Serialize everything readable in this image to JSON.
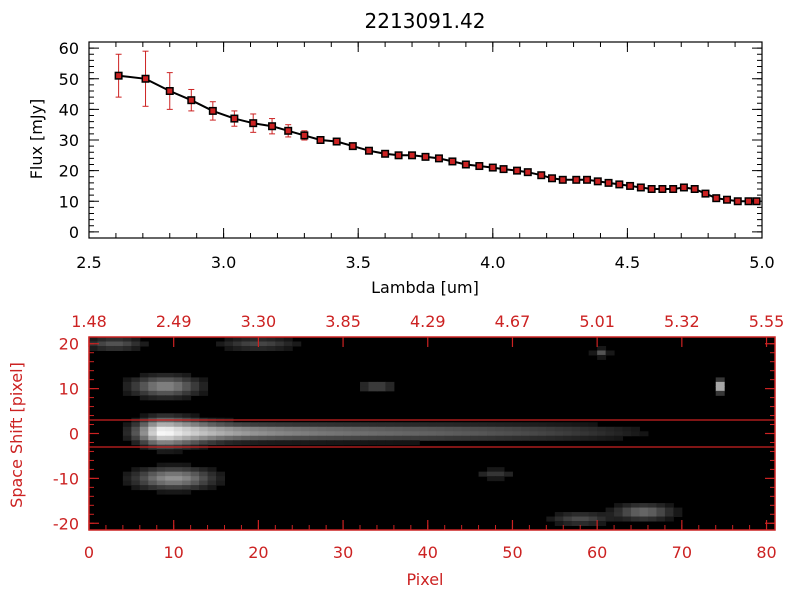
{
  "chart_data": [
    {
      "type": "line",
      "title": "2213091.42",
      "xlabel": "Lambda [um]",
      "ylabel": "Flux [mJy]",
      "xlim": [
        2.5,
        5.0
      ],
      "ylim": [
        -2,
        62
      ],
      "xticks": [
        {
          "v": 2.5,
          "label": "2.5"
        },
        {
          "v": 3.0,
          "label": "3.0"
        },
        {
          "v": 3.5,
          "label": "3.5"
        },
        {
          "v": 4.0,
          "label": "4.0"
        },
        {
          "v": 4.5,
          "label": "4.5"
        },
        {
          "v": 5.0,
          "label": "5.0"
        }
      ],
      "yticks": [
        {
          "v": 0,
          "label": "0"
        },
        {
          "v": 10,
          "label": "10"
        },
        {
          "v": 20,
          "label": "20"
        },
        {
          "v": 30,
          "label": "30"
        },
        {
          "v": 40,
          "label": "40"
        },
        {
          "v": 50,
          "label": "50"
        },
        {
          "v": 60,
          "label": "60"
        }
      ],
      "line_color": "#000000",
      "marker_color": "#cc2222",
      "errorbar_color": "#cc2222",
      "series": [
        {
          "x": [
            2.61,
            2.71,
            2.8,
            2.88,
            2.96,
            3.04,
            3.11,
            3.18,
            3.24,
            3.3,
            3.36,
            3.42,
            3.48,
            3.54,
            3.6,
            3.65,
            3.7,
            3.75,
            3.8,
            3.85,
            3.9,
            3.95,
            4.0,
            4.04,
            4.09,
            4.13,
            4.18,
            4.22,
            4.26,
            4.31,
            4.35,
            4.39,
            4.43,
            4.47,
            4.51,
            4.55,
            4.59,
            4.63,
            4.67,
            4.71,
            4.75,
            4.79,
            4.83,
            4.87,
            4.91,
            4.95,
            4.98
          ],
          "y": [
            51,
            50,
            46,
            43,
            39.5,
            37,
            35.5,
            34.5,
            33,
            31.5,
            30,
            29.5,
            28,
            26.5,
            25.5,
            25,
            25,
            24.5,
            24,
            23,
            22,
            21.5,
            21,
            20.5,
            20,
            19.5,
            18.5,
            17.5,
            17,
            17,
            17,
            16.5,
            16,
            15.5,
            15,
            14.5,
            14,
            14,
            14,
            14.5,
            14,
            12.5,
            11,
            10.5,
            10,
            10,
            10
          ],
          "err": [
            7,
            9,
            6,
            3.5,
            3,
            2.5,
            3,
            2.5,
            2,
            1.5,
            1,
            1,
            1,
            1,
            1,
            1,
            1,
            1,
            1,
            1,
            1,
            1,
            1,
            1,
            1,
            1,
            1,
            1,
            1,
            1,
            1,
            1,
            1,
            1,
            1,
            1,
            1,
            1,
            1,
            1,
            1,
            1,
            1,
            1,
            1,
            1,
            1
          ]
        }
      ]
    },
    {
      "type": "heatmap",
      "xlabel": "Pixel",
      "ylabel": "Space Shift [pixel]",
      "xlim": [
        0,
        81
      ],
      "ylim": [
        -21.5,
        21.5
      ],
      "xticks": [
        {
          "v": 0,
          "label": "0"
        },
        {
          "v": 10,
          "label": "10"
        },
        {
          "v": 20,
          "label": "20"
        },
        {
          "v": 30,
          "label": "30"
        },
        {
          "v": 40,
          "label": "40"
        },
        {
          "v": 50,
          "label": "50"
        },
        {
          "v": 60,
          "label": "60"
        },
        {
          "v": 70,
          "label": "70"
        },
        {
          "v": 80,
          "label": "80"
        }
      ],
      "top_axis_ticks": [
        {
          "v": 0,
          "label": "1.48"
        },
        {
          "v": 10,
          "label": "2.49"
        },
        {
          "v": 20,
          "label": "3.30"
        },
        {
          "v": 30,
          "label": "3.85"
        },
        {
          "v": 40,
          "label": "4.29"
        },
        {
          "v": 50,
          "label": "4.67"
        },
        {
          "v": 60,
          "label": "5.01"
        },
        {
          "v": 70,
          "label": "5.32"
        },
        {
          "v": 80,
          "label": "5.55"
        }
      ],
      "yticks": [
        {
          "v": -20,
          "label": "-20"
        },
        {
          "v": -10,
          "label": "-10"
        },
        {
          "v": 0,
          "label": "0"
        },
        {
          "v": 10,
          "label": "10"
        },
        {
          "v": 20,
          "label": "20"
        }
      ],
      "extraction_window": [
        -3,
        3
      ],
      "axis_color": "#cc2222",
      "background": "#000000",
      "features": [
        {
          "name": "trace",
          "x0": 5,
          "x1": 68,
          "y": 0.3,
          "peak_x": 9,
          "peak": 1.0,
          "width": 1.6
        },
        {
          "name": "blob",
          "x": 9,
          "y": 10.5,
          "peak": 0.45,
          "sx": 3.5,
          "sy": 2
        },
        {
          "name": "blob",
          "x": 10,
          "y": -10,
          "peak": 0.5,
          "sx": 4,
          "sy": 2
        },
        {
          "name": "blob",
          "x": 74.5,
          "y": 10.5,
          "peak": 0.7,
          "sx": 0.6,
          "sy": 1.2
        },
        {
          "name": "blob",
          "x": 65.5,
          "y": -17.5,
          "peak": 0.35,
          "sx": 3,
          "sy": 1.5
        },
        {
          "name": "blob",
          "x": 58,
          "y": -19,
          "peak": 0.22,
          "sx": 3,
          "sy": 1.2
        },
        {
          "name": "blob",
          "x": 3,
          "y": 20,
          "peak": 0.25,
          "sx": 3,
          "sy": 1.2
        },
        {
          "name": "blob",
          "x": 20,
          "y": 20,
          "peak": 0.2,
          "sx": 4,
          "sy": 1.2
        },
        {
          "name": "blob",
          "x": 34,
          "y": 10.5,
          "peak": 0.2,
          "sx": 2,
          "sy": 1.2
        },
        {
          "name": "blob",
          "x": 48,
          "y": -9,
          "peak": 0.15,
          "sx": 2,
          "sy": 1
        },
        {
          "name": "blob",
          "x": 60.5,
          "y": 18,
          "peak": 0.25,
          "sx": 0.8,
          "sy": 0.8
        }
      ]
    }
  ]
}
